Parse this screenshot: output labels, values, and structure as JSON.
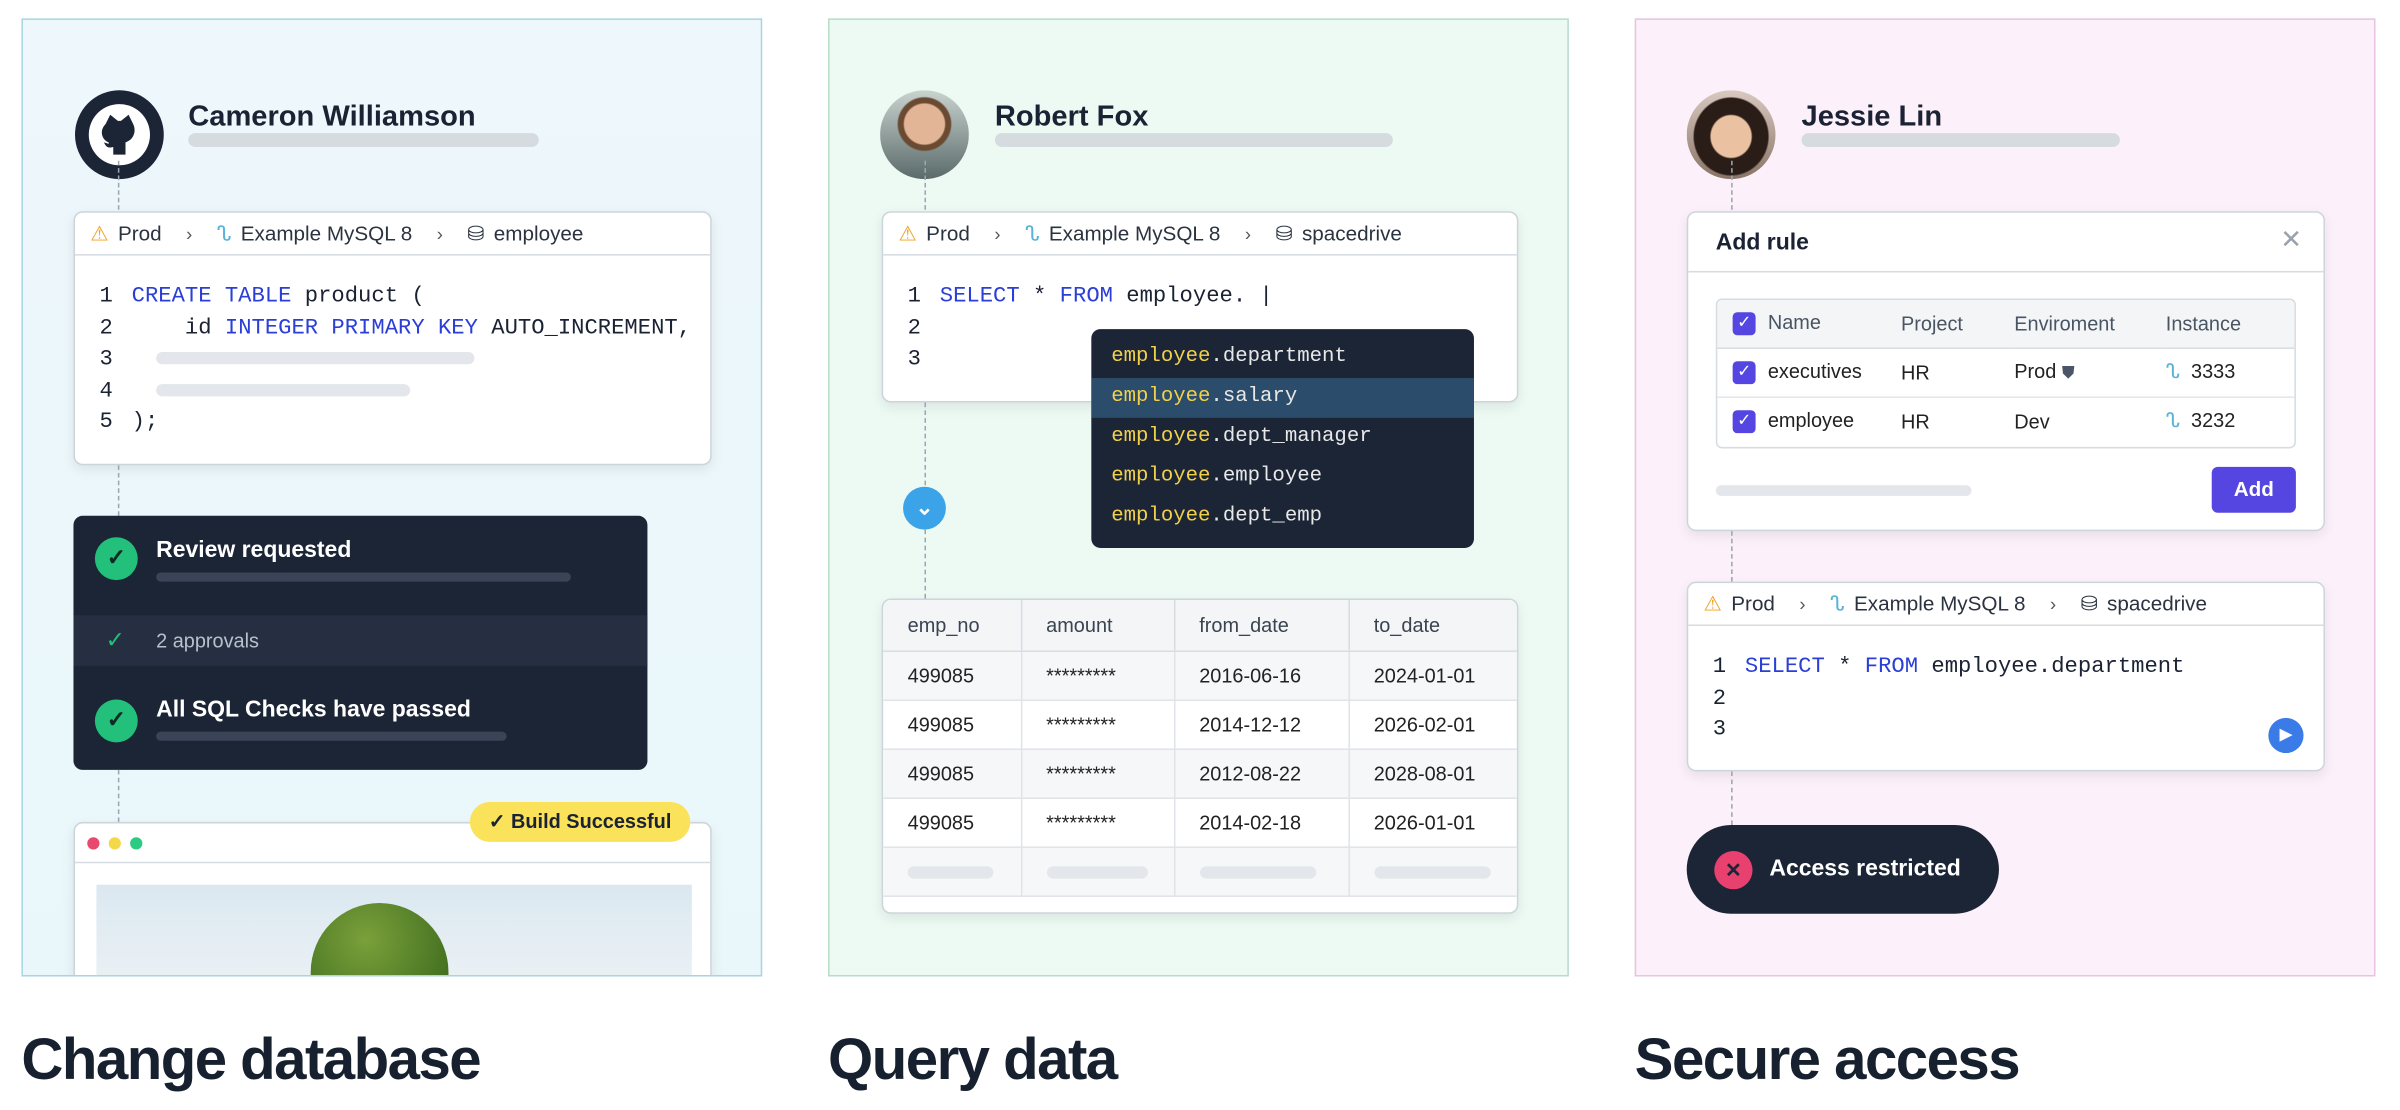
{
  "panels": [
    {
      "title": "Change database",
      "user": {
        "name": "Cameron Williamson",
        "avatar_icon": "github-icon"
      },
      "sql_card": {
        "breadcrumb": {
          "env": "Prod",
          "instance": "Example MySQL 8",
          "database": "employee"
        },
        "lines": {
          "n1": "1",
          "n2": "2",
          "n3": "3",
          "n4": "4",
          "n5": "5",
          "l1_kw": "CREATE TABLE",
          "l1_rest": "product (",
          "l2_id": "id",
          "l2_kw": "INTEGER PRIMARY KEY",
          "l2_rest": "AUTO_INCREMENT,",
          "l5": ");"
        }
      },
      "review": {
        "review_requested": "Review requested",
        "approvals": "2 approvals",
        "checks_passed": "All SQL Checks have passed"
      },
      "build_badge": "Build Successful"
    },
    {
      "title": "Query data",
      "user": {
        "name": "Robert Fox"
      },
      "sql_card": {
        "breadcrumb": {
          "env": "Prod",
          "instance": "Example MySQL 8",
          "database": "spacedrive"
        },
        "n1": "1",
        "n2": "2",
        "n3": "3",
        "l1_kw1": "SELECT",
        "l1_star": "*",
        "l1_kw2": "FROM",
        "l1_rest": "employee. |"
      },
      "autocomplete": [
        {
          "prefix": "employee",
          "field": ".department"
        },
        {
          "prefix": "employee",
          "field": ".salary",
          "selected": true
        },
        {
          "prefix": "employee",
          "field": ".dept_manager"
        },
        {
          "prefix": "employee",
          "field": ".employee"
        },
        {
          "prefix": "employee",
          "field": ".dept_emp"
        }
      ],
      "result_table": {
        "columns": [
          "emp_no",
          "amount",
          "from_date",
          "to_date"
        ],
        "rows": [
          [
            "499085",
            "*********",
            "2016-06-16",
            "2024-01-01"
          ],
          [
            "499085",
            "*********",
            "2014-12-12",
            "2026-02-01"
          ],
          [
            "499085",
            "*********",
            "2012-08-22",
            "2028-08-01"
          ],
          [
            "499085",
            "*********",
            "2014-02-18",
            "2026-01-01"
          ]
        ]
      }
    },
    {
      "title": "Secure access",
      "user": {
        "name": "Jessie Lin"
      },
      "add_rule": {
        "title": "Add rule",
        "columns": [
          "Name",
          "Project",
          "Enviroment",
          "Instance"
        ],
        "rows": [
          [
            "executives",
            "HR",
            "Prod",
            "3333"
          ],
          [
            "employee",
            "HR",
            "Dev",
            "3232"
          ]
        ],
        "add_label": "Add"
      },
      "sql_card": {
        "breadcrumb": {
          "env": "Prod",
          "instance": "Example MySQL 8",
          "database": "spacedrive"
        },
        "n1": "1",
        "n2": "2",
        "n3": "3",
        "l1_kw1": "SELECT",
        "l1_star": "*",
        "l1_kw2": "FROM",
        "l1_rest": "employee.department"
      },
      "access_restricted": "Access restricted"
    }
  ],
  "colors": {
    "accent_purple": "#5546e2",
    "success_green": "#22c07a",
    "dark_card": "#1c2536",
    "keyword_blue": "#2b3fd8",
    "badge_yellow": "#fae25a",
    "error_pink": "#e8416f"
  }
}
